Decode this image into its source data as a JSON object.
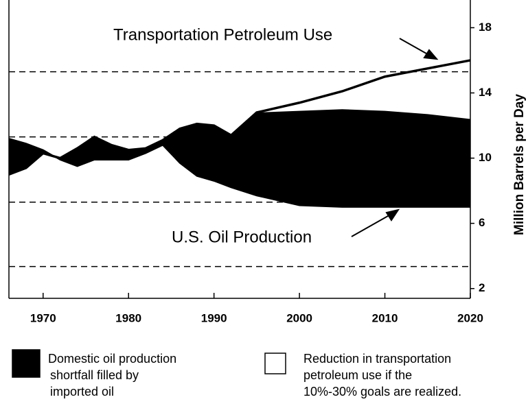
{
  "chart_data": {
    "type": "line",
    "x": [
      1966,
      1968,
      1970,
      1972,
      1974,
      1976,
      1978,
      1980,
      1982,
      1984,
      1986,
      1988,
      1990,
      1992,
      1995,
      2000,
      2005,
      2010,
      2015,
      2020
    ],
    "series": [
      {
        "name": "Transportation Petroleum Use",
        "color": "#000000",
        "values": [
          9.0,
          9.4,
          10.3,
          10.0,
          10.6,
          11.3,
          10.8,
          10.5,
          10.6,
          11.1,
          11.8,
          12.1,
          12.0,
          11.4,
          12.8,
          13.4,
          14.1,
          15.0,
          15.5,
          16.0
        ]
      },
      {
        "name": "U.S. Oil Production",
        "color": "#000000",
        "values": [
          11.2,
          10.9,
          10.5,
          9.9,
          9.5,
          9.9,
          9.9,
          9.9,
          10.3,
          10.8,
          9.7,
          8.9,
          8.6,
          8.2,
          7.7,
          7.1,
          7.0,
          7.0,
          7.0,
          7.0
        ]
      }
    ],
    "areas": [
      {
        "label": [
          "Domestic oil production",
          "shortfall  filled by",
          "imported oil"
        ],
        "color": "#000000"
      },
      {
        "label": [
          "Reduction in transportation",
          "petroleum use if the",
          "10%-30% goals are realized."
        ],
        "color": "#ffffff",
        "values": [
          null,
          null,
          null,
          null,
          null,
          null,
          null,
          null,
          null,
          null,
          null,
          null,
          null,
          null,
          12.8,
          12.9,
          13.0,
          12.9,
          12.7,
          12.4
        ]
      }
    ],
    "y_label": "Million Barrels per Day",
    "xlim": [
      1966,
      2020
    ],
    "xticks": [
      1970,
      1980,
      1990,
      2000,
      2010,
      2020
    ],
    "ylim": [
      1.4,
      19.7
    ],
    "yticks": [
      2,
      6,
      10,
      14,
      18
    ],
    "reference_lines": [
      15.3,
      11.3,
      7.3,
      3.35
    ]
  }
}
